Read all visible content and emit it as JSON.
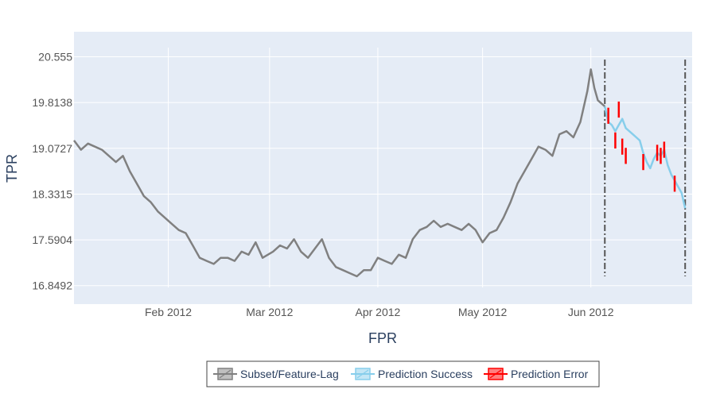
{
  "chart_data": {
    "type": "line",
    "title": "",
    "xlabel": "FPR",
    "ylabel": "TPR",
    "x_ticks": [
      "Feb 2012",
      "Mar 2012",
      "Apr 2012",
      "May 2012",
      "Jun 2012"
    ],
    "x_tick_dates": [
      "2012-02-01",
      "2012-03-01",
      "2012-04-01",
      "2012-05-01",
      "2012-06-01"
    ],
    "y_ticks": [
      "16.8492",
      "17.5904",
      "18.3315",
      "19.0727",
      "19.8138",
      "20.555"
    ],
    "y_tick_values": [
      16.8492,
      17.5904,
      18.3315,
      19.0727,
      19.8138,
      20.555
    ],
    "xlim": [
      "2012-01-05",
      "2012-06-30"
    ],
    "ylim": [
      16.55,
      20.96
    ],
    "grid": true,
    "legend_position": "bottom-center",
    "plot_bg": "#e5ecf6",
    "vertical_lines": [
      "2012-06-05",
      "2012-06-28"
    ],
    "vertical_line_color": "#555555",
    "series": [
      {
        "name": "Subset/Feature-Lag",
        "color": "#808080",
        "points": [
          [
            "2012-01-05",
            19.2
          ],
          [
            "2012-01-07",
            19.05
          ],
          [
            "2012-01-09",
            19.15
          ],
          [
            "2012-01-11",
            19.1
          ],
          [
            "2012-01-13",
            19.05
          ],
          [
            "2012-01-15",
            18.95
          ],
          [
            "2012-01-17",
            18.85
          ],
          [
            "2012-01-19",
            18.95
          ],
          [
            "2012-01-21",
            18.7
          ],
          [
            "2012-01-23",
            18.5
          ],
          [
            "2012-01-25",
            18.3
          ],
          [
            "2012-01-27",
            18.2
          ],
          [
            "2012-01-29",
            18.05
          ],
          [
            "2012-01-31",
            17.95
          ],
          [
            "2012-02-02",
            17.85
          ],
          [
            "2012-02-04",
            17.75
          ],
          [
            "2012-02-06",
            17.7
          ],
          [
            "2012-02-08",
            17.5
          ],
          [
            "2012-02-10",
            17.3
          ],
          [
            "2012-02-12",
            17.25
          ],
          [
            "2012-02-14",
            17.2
          ],
          [
            "2012-02-16",
            17.3
          ],
          [
            "2012-02-18",
            17.3
          ],
          [
            "2012-02-20",
            17.25
          ],
          [
            "2012-02-22",
            17.4
          ],
          [
            "2012-02-24",
            17.35
          ],
          [
            "2012-02-26",
            17.55
          ],
          [
            "2012-02-28",
            17.3
          ],
          [
            "2012-03-02",
            17.4
          ],
          [
            "2012-03-04",
            17.5
          ],
          [
            "2012-03-06",
            17.45
          ],
          [
            "2012-03-08",
            17.6
          ],
          [
            "2012-03-10",
            17.4
          ],
          [
            "2012-03-12",
            17.3
          ],
          [
            "2012-03-14",
            17.45
          ],
          [
            "2012-03-16",
            17.6
          ],
          [
            "2012-03-18",
            17.3
          ],
          [
            "2012-03-20",
            17.15
          ],
          [
            "2012-03-22",
            17.1
          ],
          [
            "2012-03-24",
            17.05
          ],
          [
            "2012-03-26",
            17.0
          ],
          [
            "2012-03-28",
            17.1
          ],
          [
            "2012-03-30",
            17.1
          ],
          [
            "2012-04-01",
            17.3
          ],
          [
            "2012-04-03",
            17.25
          ],
          [
            "2012-04-05",
            17.2
          ],
          [
            "2012-04-07",
            17.35
          ],
          [
            "2012-04-09",
            17.3
          ],
          [
            "2012-04-11",
            17.6
          ],
          [
            "2012-04-13",
            17.75
          ],
          [
            "2012-04-15",
            17.8
          ],
          [
            "2012-04-17",
            17.9
          ],
          [
            "2012-04-19",
            17.8
          ],
          [
            "2012-04-21",
            17.85
          ],
          [
            "2012-04-23",
            17.8
          ],
          [
            "2012-04-25",
            17.75
          ],
          [
            "2012-04-27",
            17.85
          ],
          [
            "2012-04-29",
            17.75
          ],
          [
            "2012-05-01",
            17.55
          ],
          [
            "2012-05-03",
            17.7
          ],
          [
            "2012-05-05",
            17.75
          ],
          [
            "2012-05-07",
            17.95
          ],
          [
            "2012-05-09",
            18.2
          ],
          [
            "2012-05-11",
            18.5
          ],
          [
            "2012-05-13",
            18.7
          ],
          [
            "2012-05-15",
            18.9
          ],
          [
            "2012-05-17",
            19.1
          ],
          [
            "2012-05-19",
            19.05
          ],
          [
            "2012-05-21",
            18.95
          ],
          [
            "2012-05-23",
            19.3
          ],
          [
            "2012-05-25",
            19.35
          ],
          [
            "2012-05-27",
            19.25
          ],
          [
            "2012-05-29",
            19.5
          ],
          [
            "2012-05-31",
            20.0
          ],
          [
            "2012-06-01",
            20.35
          ],
          [
            "2012-06-02",
            20.05
          ],
          [
            "2012-06-03",
            19.85
          ],
          [
            "2012-06-04",
            19.8
          ],
          [
            "2012-06-05",
            19.75
          ]
        ]
      },
      {
        "name": "Prediction Success",
        "color": "#87ceeb",
        "points": [
          [
            "2012-06-05",
            19.75
          ],
          [
            "2012-06-06",
            19.5
          ],
          [
            "2012-06-07",
            19.45
          ],
          [
            "2012-06-08",
            19.35
          ],
          [
            "2012-06-09",
            19.45
          ],
          [
            "2012-06-10",
            19.55
          ],
          [
            "2012-06-11",
            19.4
          ],
          [
            "2012-06-12",
            19.35
          ],
          [
            "2012-06-13",
            19.3
          ],
          [
            "2012-06-14",
            19.25
          ],
          [
            "2012-06-15",
            19.2
          ],
          [
            "2012-06-16",
            19.0
          ],
          [
            "2012-06-17",
            18.85
          ],
          [
            "2012-06-18",
            18.75
          ],
          [
            "2012-06-19",
            18.9
          ],
          [
            "2012-06-20",
            19.0
          ],
          [
            "2012-06-21",
            18.95
          ],
          [
            "2012-06-22",
            19.05
          ],
          [
            "2012-06-23",
            18.8
          ],
          [
            "2012-06-24",
            18.65
          ],
          [
            "2012-06-25",
            18.55
          ],
          [
            "2012-06-26",
            18.45
          ],
          [
            "2012-06-27",
            18.35
          ],
          [
            "2012-06-28",
            18.1
          ]
        ]
      },
      {
        "name": "Prediction Error",
        "color": "#ff0000",
        "points": [
          [
            "2012-06-06",
            19.6
          ],
          [
            "2012-06-08",
            19.2
          ],
          [
            "2012-06-09",
            19.7
          ],
          [
            "2012-06-10",
            19.1
          ],
          [
            "2012-06-11",
            18.95
          ],
          [
            "2012-06-16",
            18.85
          ],
          [
            "2012-06-20",
            19.0
          ],
          [
            "2012-06-21",
            18.95
          ],
          [
            "2012-06-22",
            19.05
          ],
          [
            "2012-06-25",
            18.5
          ]
        ]
      }
    ]
  }
}
